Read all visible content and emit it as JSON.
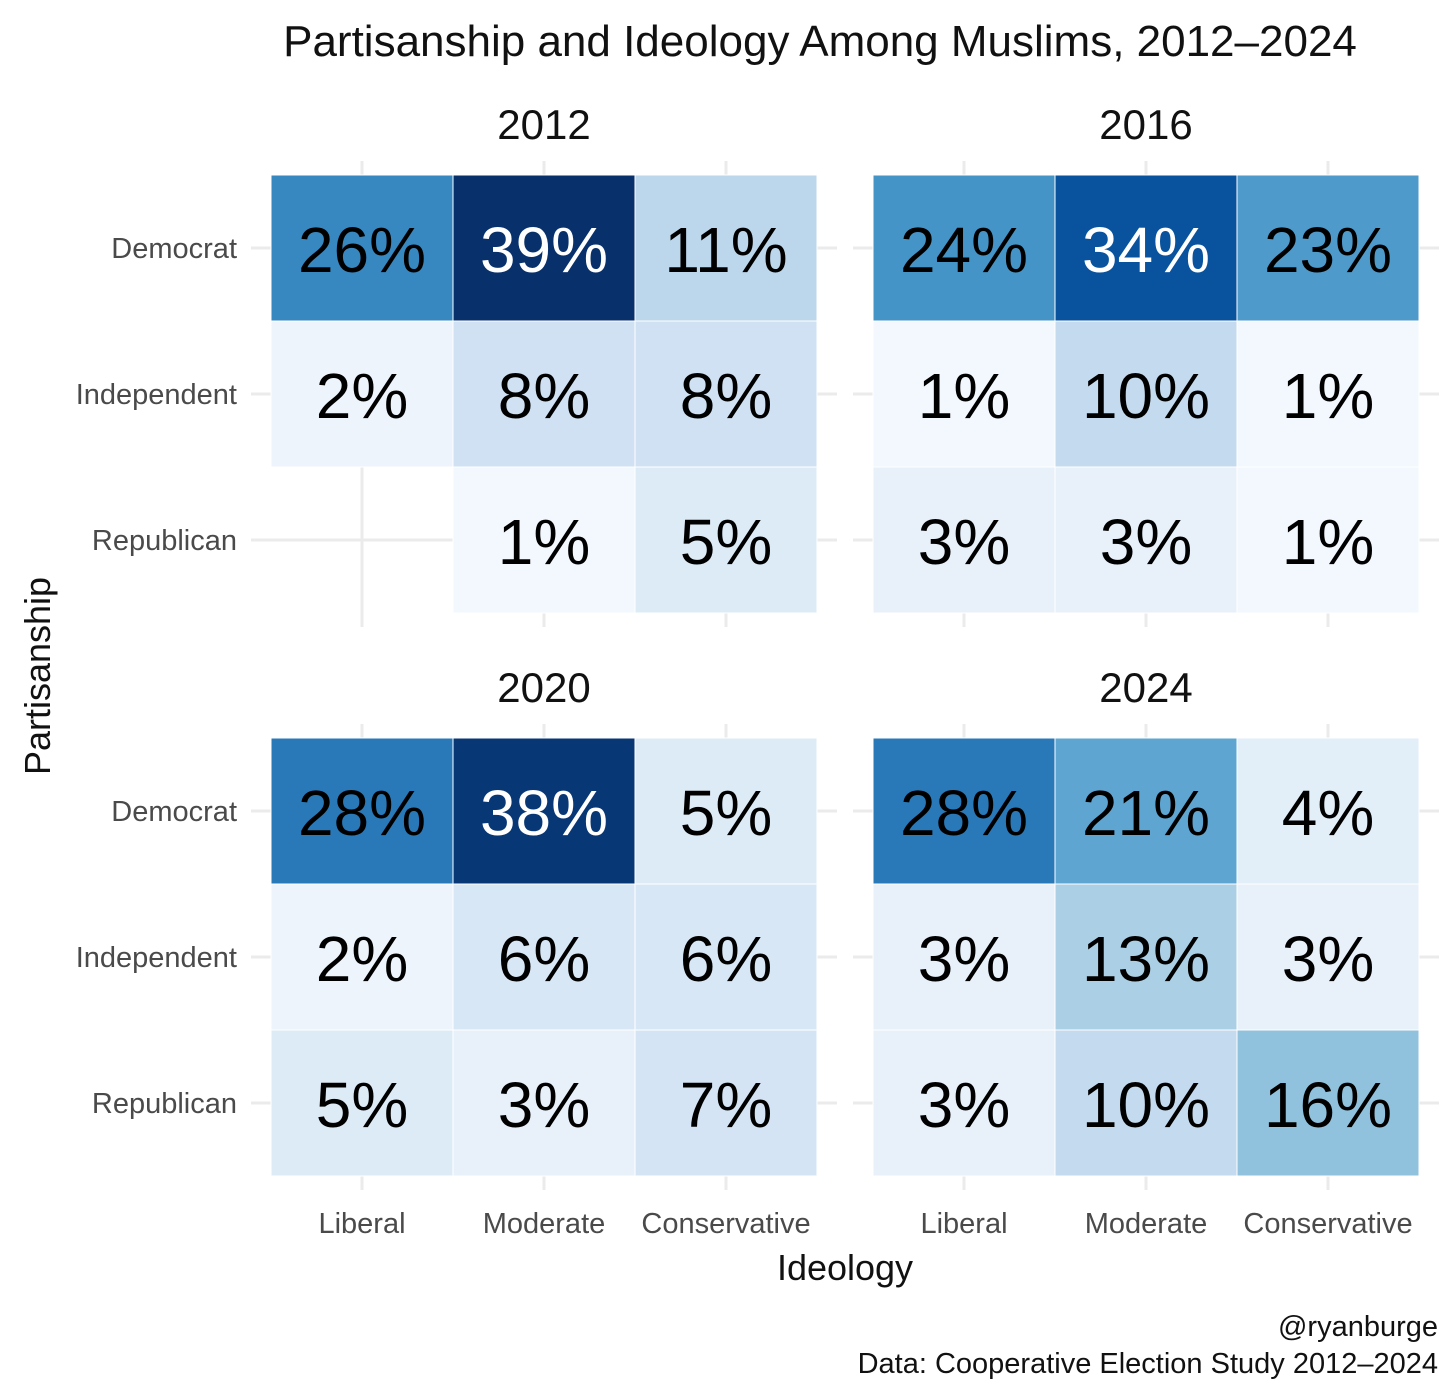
{
  "chart_data": {
    "type": "heatmap",
    "title": "Partisanship and Ideology Among Muslims, 2012–2024",
    "xlabel": "Ideology",
    "ylabel": "Partisanship",
    "x_categories": [
      "Liberal",
      "Moderate",
      "Conservative"
    ],
    "y_categories": [
      "Democrat",
      "Independent",
      "Republican"
    ],
    "color_scale": {
      "low": "#f7fbff",
      "high": "#08306b",
      "max_value": 39
    },
    "panels": [
      {
        "title": "2012",
        "cells": [
          {
            "ideology": "Liberal",
            "partisanship": "Democrat",
            "value": 26,
            "label": "26%"
          },
          {
            "ideology": "Moderate",
            "partisanship": "Democrat",
            "value": 39,
            "label": "39%"
          },
          {
            "ideology": "Conservative",
            "partisanship": "Democrat",
            "value": 11,
            "label": "11%"
          },
          {
            "ideology": "Liberal",
            "partisanship": "Independent",
            "value": 2,
            "label": "2%"
          },
          {
            "ideology": "Moderate",
            "partisanship": "Independent",
            "value": 8,
            "label": "8%"
          },
          {
            "ideology": "Conservative",
            "partisanship": "Independent",
            "value": 8,
            "label": "8%"
          },
          {
            "ideology": "Moderate",
            "partisanship": "Republican",
            "value": 1,
            "label": "1%"
          },
          {
            "ideology": "Conservative",
            "partisanship": "Republican",
            "value": 5,
            "label": "5%"
          }
        ]
      },
      {
        "title": "2016",
        "cells": [
          {
            "ideology": "Liberal",
            "partisanship": "Democrat",
            "value": 24,
            "label": "24%"
          },
          {
            "ideology": "Moderate",
            "partisanship": "Democrat",
            "value": 34,
            "label": "34%"
          },
          {
            "ideology": "Conservative",
            "partisanship": "Democrat",
            "value": 23,
            "label": "23%"
          },
          {
            "ideology": "Liberal",
            "partisanship": "Independent",
            "value": 1,
            "label": "1%"
          },
          {
            "ideology": "Moderate",
            "partisanship": "Independent",
            "value": 10,
            "label": "10%"
          },
          {
            "ideology": "Conservative",
            "partisanship": "Independent",
            "value": 1,
            "label": "1%"
          },
          {
            "ideology": "Liberal",
            "partisanship": "Republican",
            "value": 3,
            "label": "3%"
          },
          {
            "ideology": "Moderate",
            "partisanship": "Republican",
            "value": 3,
            "label": "3%"
          },
          {
            "ideology": "Conservative",
            "partisanship": "Republican",
            "value": 1,
            "label": "1%"
          }
        ]
      },
      {
        "title": "2020",
        "cells": [
          {
            "ideology": "Liberal",
            "partisanship": "Democrat",
            "value": 28,
            "label": "28%"
          },
          {
            "ideology": "Moderate",
            "partisanship": "Democrat",
            "value": 38,
            "label": "38%"
          },
          {
            "ideology": "Conservative",
            "partisanship": "Democrat",
            "value": 5,
            "label": "5%"
          },
          {
            "ideology": "Liberal",
            "partisanship": "Independent",
            "value": 2,
            "label": "2%"
          },
          {
            "ideology": "Moderate",
            "partisanship": "Independent",
            "value": 6,
            "label": "6%"
          },
          {
            "ideology": "Conservative",
            "partisanship": "Independent",
            "value": 6,
            "label": "6%"
          },
          {
            "ideology": "Liberal",
            "partisanship": "Republican",
            "value": 5,
            "label": "5%"
          },
          {
            "ideology": "Moderate",
            "partisanship": "Republican",
            "value": 3,
            "label": "3%"
          },
          {
            "ideology": "Conservative",
            "partisanship": "Republican",
            "value": 7,
            "label": "7%"
          }
        ]
      },
      {
        "title": "2024",
        "cells": [
          {
            "ideology": "Liberal",
            "partisanship": "Democrat",
            "value": 28,
            "label": "28%"
          },
          {
            "ideology": "Moderate",
            "partisanship": "Democrat",
            "value": 21,
            "label": "21%"
          },
          {
            "ideology": "Conservative",
            "partisanship": "Democrat",
            "value": 4,
            "label": "4%"
          },
          {
            "ideology": "Liberal",
            "partisanship": "Independent",
            "value": 3,
            "label": "3%"
          },
          {
            "ideology": "Moderate",
            "partisanship": "Independent",
            "value": 13,
            "label": "13%"
          },
          {
            "ideology": "Conservative",
            "partisanship": "Independent",
            "value": 3,
            "label": "3%"
          },
          {
            "ideology": "Liberal",
            "partisanship": "Republican",
            "value": 3,
            "label": "3%"
          },
          {
            "ideology": "Moderate",
            "partisanship": "Republican",
            "value": 10,
            "label": "10%"
          },
          {
            "ideology": "Conservative",
            "partisanship": "Republican",
            "value": 16,
            "label": "16%"
          }
        ]
      }
    ],
    "caption_lines": [
      "@ryanburge",
      "Data: Cooperative Election Study 2012–2024"
    ]
  }
}
